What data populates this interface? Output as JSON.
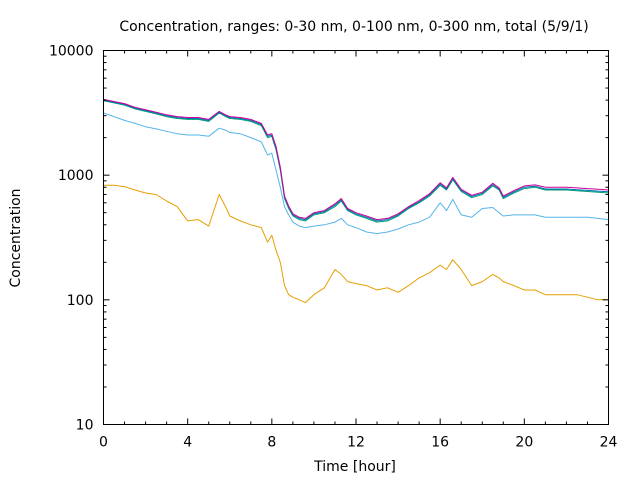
{
  "chart_data": {
    "type": "line",
    "title": "Concentration, ranges: 0-30 nm, 0-100 nm, 0-300 nm, total (5/9/1)",
    "xlabel": "Time [hour]",
    "ylabel": "Concentration",
    "xlim": [
      0,
      24
    ],
    "ylim": [
      10,
      10000
    ],
    "yscale": "log",
    "grid": false,
    "legend": "none",
    "x_ticks": [
      "0",
      "4",
      "8",
      "12",
      "16",
      "20",
      "24"
    ],
    "y_ticks": [
      "10",
      "100",
      "1000",
      "10000"
    ],
    "x": [
      0,
      0.5,
      1,
      1.5,
      2,
      2.5,
      3,
      3.5,
      4,
      4.5,
      5,
      5.5,
      5.8,
      6,
      6.5,
      7,
      7.5,
      7.8,
      8,
      8.2,
      8.4,
      8.6,
      8.8,
      9,
      9.3,
      9.6,
      10,
      10.5,
      11,
      11.3,
      11.6,
      12,
      12.5,
      13,
      13.5,
      14,
      14.5,
      15,
      15.5,
      16,
      16.3,
      16.6,
      17,
      17.5,
      18,
      18.5,
      18.8,
      19,
      19.5,
      20,
      20.5,
      21,
      21.5,
      22,
      22.5,
      23,
      23.5,
      24
    ],
    "series": [
      {
        "color": "#e69f00",
        "values": [
          830,
          830,
          810,
          760,
          720,
          700,
          620,
          560,
          430,
          440,
          390,
          700,
          560,
          470,
          430,
          400,
          380,
          290,
          330,
          250,
          200,
          130,
          110,
          105,
          100,
          95,
          110,
          125,
          175,
          160,
          140,
          135,
          130,
          120,
          125,
          115,
          130,
          150,
          165,
          190,
          175,
          210,
          175,
          130,
          140,
          160,
          150,
          140,
          130,
          120,
          120,
          110,
          110,
          110,
          110,
          105,
          100,
          100
        ]
      },
      {
        "color": "#56b4e9",
        "values": [
          3150,
          2950,
          2750,
          2600,
          2450,
          2350,
          2250,
          2150,
          2100,
          2100,
          2050,
          2380,
          2300,
          2200,
          2150,
          2000,
          1850,
          1450,
          1500,
          1100,
          800,
          560,
          480,
          420,
          390,
          380,
          390,
          400,
          420,
          450,
          400,
          380,
          350,
          340,
          350,
          370,
          400,
          420,
          460,
          600,
          520,
          640,
          480,
          460,
          540,
          550,
          500,
          470,
          480,
          480,
          480,
          460,
          460,
          460,
          460,
          460,
          450,
          440
        ]
      },
      {
        "color": "#009e73",
        "values": [
          3950,
          3800,
          3650,
          3400,
          3250,
          3100,
          2950,
          2850,
          2800,
          2800,
          2700,
          3150,
          2950,
          2850,
          2800,
          2700,
          2500,
          2000,
          2050,
          1600,
          1100,
          650,
          540,
          470,
          440,
          430,
          480,
          500,
          560,
          620,
          520,
          480,
          450,
          420,
          430,
          470,
          540,
          600,
          680,
          830,
          760,
          920,
          740,
          660,
          700,
          820,
          760,
          650,
          720,
          780,
          800,
          760,
          760,
          760,
          750,
          740,
          730,
          720
        ]
      },
      {
        "color": "#0072b2",
        "values": [
          4000,
          3850,
          3700,
          3450,
          3300,
          3150,
          3000,
          2900,
          2850,
          2850,
          2750,
          3200,
          3000,
          2900,
          2850,
          2750,
          2550,
          2050,
          2100,
          1650,
          1130,
          670,
          555,
          480,
          450,
          440,
          490,
          510,
          575,
          635,
          530,
          490,
          460,
          430,
          440,
          480,
          550,
          610,
          695,
          850,
          775,
          940,
          755,
          675,
          715,
          840,
          775,
          665,
          735,
          800,
          815,
          775,
          775,
          775,
          765,
          755,
          745,
          735
        ]
      },
      {
        "color": "#cc0099",
        "values": [
          4050,
          3900,
          3750,
          3500,
          3350,
          3200,
          3050,
          2950,
          2900,
          2900,
          2800,
          3250,
          3050,
          2950,
          2900,
          2800,
          2600,
          2100,
          2150,
          1700,
          1160,
          680,
          565,
          490,
          460,
          450,
          500,
          520,
          590,
          650,
          540,
          500,
          470,
          440,
          450,
          490,
          560,
          625,
          710,
          870,
          790,
          960,
          770,
          690,
          730,
          860,
          790,
          680,
          750,
          820,
          835,
          800,
          800,
          800,
          790,
          780,
          770,
          760
        ]
      }
    ]
  }
}
